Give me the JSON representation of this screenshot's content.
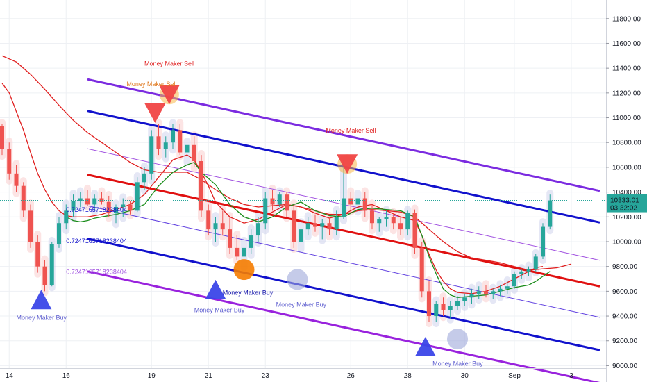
{
  "chart_data": {
    "type": "candlestick",
    "y_axis": {
      "range": [
        8980,
        11950
      ],
      "ticks": [
        "9000.00",
        "9200.00",
        "9400.00",
        "9600.00",
        "9800.00",
        "10000.00",
        "10200.00",
        "10400.00",
        "10600.00",
        "10800.00",
        "11000.00",
        "11200.00",
        "11400.00",
        "11600.00",
        "11800.00"
      ],
      "position": "right"
    },
    "x_axis": {
      "ticks": [
        {
          "label": "14",
          "index": 1
        },
        {
          "label": "16",
          "index": 9
        },
        {
          "label": "19",
          "index": 21
        },
        {
          "label": "21",
          "index": 29
        },
        {
          "label": "23",
          "index": 37
        },
        {
          "label": "26",
          "index": 49
        },
        {
          "label": "28",
          "index": 57
        },
        {
          "label": "30",
          "index": 65
        },
        {
          "label": "Sep",
          "index": 72
        },
        {
          "label": "3",
          "index": 80
        }
      ]
    },
    "grid": true,
    "price_badge": {
      "price": "10333.01",
      "countdown": "03:32:02",
      "value": 10333.01,
      "color": "#26a69a"
    },
    "bull_color": "#26a69a",
    "bear_color": "#ef5350",
    "candles": [
      [
        10930,
        10950,
        10700,
        10750
      ],
      [
        10750,
        10800,
        10500,
        10550
      ],
      [
        10550,
        10620,
        10400,
        10450
      ],
      [
        10450,
        10480,
        10200,
        10250
      ],
      [
        10250,
        10300,
        9950,
        10000
      ],
      [
        10000,
        10050,
        9750,
        9800
      ],
      [
        9800,
        9850,
        9600,
        9650
      ],
      [
        9650,
        10000,
        9640,
        9980
      ],
      [
        9980,
        10200,
        9950,
        10150
      ],
      [
        10150,
        10300,
        10100,
        10250
      ],
      [
        10250,
        10380,
        10200,
        10330
      ],
      [
        10330,
        10400,
        10280,
        10350
      ],
      [
        10350,
        10420,
        10290,
        10300
      ],
      [
        10300,
        10380,
        10250,
        10350
      ],
      [
        10350,
        10400,
        10300,
        10320
      ],
      [
        10320,
        10370,
        10200,
        10230
      ],
      [
        10230,
        10300,
        10150,
        10280
      ],
      [
        10280,
        10350,
        10200,
        10300
      ],
      [
        10300,
        10330,
        10220,
        10250
      ],
      [
        10250,
        10520,
        10240,
        10480
      ],
      [
        10480,
        10600,
        10420,
        10550
      ],
      [
        10550,
        10900,
        10500,
        10850
      ],
      [
        10850,
        10950,
        10700,
        10750
      ],
      [
        10750,
        10850,
        10680,
        10800
      ],
      [
        10800,
        10950,
        10750,
        10900
      ],
      [
        10900,
        10950,
        10700,
        10720
      ],
      [
        10720,
        10800,
        10650,
        10780
      ],
      [
        10780,
        10850,
        10600,
        10650
      ],
      [
        10650,
        10700,
        10200,
        10250
      ],
      [
        10250,
        10300,
        10050,
        10100
      ],
      [
        10100,
        10200,
        10000,
        10150
      ],
      [
        10150,
        10250,
        10050,
        10100
      ],
      [
        10100,
        10200,
        9900,
        9950
      ],
      [
        9950,
        10050,
        9850,
        9880
      ],
      [
        9880,
        10000,
        9800,
        9950
      ],
      [
        9950,
        10100,
        9900,
        10050
      ],
      [
        10050,
        10200,
        10000,
        10150
      ],
      [
        10150,
        10400,
        10100,
        10350
      ],
      [
        10350,
        10420,
        10250,
        10300
      ],
      [
        10300,
        10400,
        10280,
        10380
      ],
      [
        10380,
        10400,
        10200,
        10250
      ],
      [
        10250,
        10300,
        9950,
        10000
      ],
      [
        10000,
        10150,
        9950,
        10100
      ],
      [
        10100,
        10200,
        10050,
        10150
      ],
      [
        10150,
        10220,
        10080,
        10120
      ],
      [
        10120,
        10180,
        10020,
        10150
      ],
      [
        10150,
        10200,
        10050,
        10100
      ],
      [
        10100,
        10250,
        10050,
        10200
      ],
      [
        10200,
        10660,
        10180,
        10350
      ],
      [
        10350,
        10400,
        10250,
        10300
      ],
      [
        10300,
        10380,
        10250,
        10350
      ],
      [
        10350,
        10400,
        10200,
        10250
      ],
      [
        10250,
        10300,
        10100,
        10150
      ],
      [
        10150,
        10200,
        10080,
        10180
      ],
      [
        10180,
        10250,
        10120,
        10200
      ],
      [
        10200,
        10230,
        10100,
        10150
      ],
      [
        10150,
        10200,
        10050,
        10100
      ],
      [
        10100,
        10250,
        10050,
        10230
      ],
      [
        10230,
        10260,
        9900,
        9950
      ],
      [
        9950,
        10000,
        9550,
        9600
      ],
      [
        9600,
        9680,
        9350,
        9400
      ],
      [
        9400,
        9520,
        9350,
        9500
      ],
      [
        9500,
        9550,
        9400,
        9450
      ],
      [
        9450,
        9520,
        9380,
        9480
      ],
      [
        9480,
        9560,
        9450,
        9520
      ],
      [
        9520,
        9580,
        9480,
        9550
      ],
      [
        9550,
        9620,
        9500,
        9580
      ],
      [
        9580,
        9640,
        9540,
        9600
      ],
      [
        9600,
        9650,
        9550,
        9580
      ],
      [
        9580,
        9620,
        9540,
        9600
      ],
      [
        9600,
        9650,
        9560,
        9620
      ],
      [
        9620,
        9680,
        9580,
        9640
      ],
      [
        9640,
        9760,
        9620,
        9740
      ],
      [
        9740,
        9780,
        9700,
        9760
      ],
      [
        9760,
        9800,
        9720,
        9780
      ],
      [
        9780,
        9900,
        9760,
        9880
      ],
      [
        9880,
        10150,
        9860,
        10120
      ],
      [
        10120,
        10380,
        10100,
        10333.01
      ]
    ],
    "moving_averages": [
      {
        "color": "#e01e1e",
        "width": 1.3,
        "points": [
          [
            0,
            11500
          ],
          [
            2,
            11450
          ],
          [
            4,
            11350
          ],
          [
            6,
            11230
          ],
          [
            8,
            11100
          ],
          [
            10,
            10980
          ],
          [
            12,
            10880
          ],
          [
            14,
            10800
          ],
          [
            16,
            10720
          ],
          [
            18,
            10640
          ],
          [
            20,
            10580
          ],
          [
            22,
            10560
          ],
          [
            24,
            10560
          ],
          [
            26,
            10560
          ],
          [
            28,
            10500
          ],
          [
            30,
            10420
          ],
          [
            32,
            10350
          ],
          [
            34,
            10300
          ],
          [
            36,
            10280
          ],
          [
            38,
            10290
          ],
          [
            40,
            10300
          ],
          [
            42,
            10280
          ],
          [
            44,
            10250
          ],
          [
            46,
            10220
          ],
          [
            48,
            10220
          ],
          [
            50,
            10250
          ],
          [
            52,
            10260
          ],
          [
            54,
            10250
          ],
          [
            56,
            10240
          ],
          [
            58,
            10200
          ],
          [
            60,
            10100
          ],
          [
            62,
            10000
          ],
          [
            64,
            9920
          ],
          [
            66,
            9870
          ],
          [
            68,
            9850
          ],
          [
            70,
            9830
          ],
          [
            72,
            9800
          ],
          [
            74,
            9770
          ],
          [
            76,
            9780
          ],
          [
            78,
            9790
          ],
          [
            80,
            9820
          ]
        ]
      },
      {
        "color": "#e01e1e",
        "width": 1.3,
        "points": [
          [
            0,
            11280
          ],
          [
            1,
            11200
          ],
          [
            2,
            11050
          ],
          [
            3,
            10900
          ],
          [
            4,
            10720
          ],
          [
            5,
            10550
          ],
          [
            6,
            10420
          ],
          [
            7,
            10320
          ],
          [
            8,
            10250
          ],
          [
            9,
            10210
          ],
          [
            10,
            10200
          ],
          [
            12,
            10200
          ],
          [
            14,
            10220
          ],
          [
            16,
            10260
          ],
          [
            18,
            10300
          ],
          [
            20,
            10380
          ],
          [
            22,
            10520
          ],
          [
            24,
            10660
          ],
          [
            26,
            10700
          ],
          [
            27,
            10660
          ],
          [
            28,
            10560
          ],
          [
            29,
            10450
          ],
          [
            30,
            10320
          ],
          [
            32,
            10200
          ],
          [
            34,
            10150
          ],
          [
            36,
            10180
          ],
          [
            38,
            10240
          ],
          [
            40,
            10300
          ],
          [
            42,
            10280
          ],
          [
            44,
            10230
          ],
          [
            46,
            10190
          ],
          [
            48,
            10220
          ],
          [
            50,
            10280
          ],
          [
            52,
            10300
          ],
          [
            54,
            10250
          ],
          [
            56,
            10200
          ],
          [
            58,
            10170
          ],
          [
            59,
            10050
          ],
          [
            60,
            9900
          ],
          [
            61,
            9770
          ],
          [
            62,
            9680
          ],
          [
            63,
            9620
          ],
          [
            64,
            9590
          ],
          [
            66,
            9580
          ],
          [
            68,
            9600
          ],
          [
            70,
            9640
          ],
          [
            72,
            9700
          ],
          [
            74,
            9760
          ],
          [
            75,
            9790
          ],
          [
            76,
            9800
          ]
        ]
      },
      {
        "color": "#1a8c1a",
        "width": 1.3,
        "points": [
          [
            9,
            10200
          ],
          [
            10,
            10170
          ],
          [
            11,
            10160
          ],
          [
            12,
            10170
          ],
          [
            13,
            10190
          ],
          [
            14,
            10200
          ],
          [
            16,
            10220
          ],
          [
            18,
            10250
          ],
          [
            20,
            10300
          ],
          [
            22,
            10450
          ],
          [
            24,
            10560
          ],
          [
            26,
            10620
          ],
          [
            27,
            10640
          ],
          [
            28,
            10560
          ],
          [
            30,
            10460
          ],
          [
            32,
            10300
          ],
          [
            34,
            10200
          ],
          [
            36,
            10160
          ],
          [
            38,
            10200
          ],
          [
            40,
            10280
          ],
          [
            42,
            10320
          ],
          [
            44,
            10250
          ],
          [
            46,
            10210
          ],
          [
            48,
            10200
          ],
          [
            50,
            10260
          ],
          [
            52,
            10270
          ],
          [
            54,
            10260
          ],
          [
            56,
            10250
          ],
          [
            58,
            10200
          ],
          [
            59,
            10050
          ],
          [
            60,
            9880
          ],
          [
            61,
            9740
          ],
          [
            62,
            9620
          ],
          [
            63,
            9570
          ],
          [
            64,
            9550
          ],
          [
            66,
            9560
          ],
          [
            68,
            9570
          ],
          [
            70,
            9600
          ],
          [
            72,
            9630
          ],
          [
            74,
            9650
          ],
          [
            75,
            9680
          ],
          [
            76,
            9720
          ],
          [
            77,
            9760
          ]
        ]
      }
    ],
    "regression_channel": {
      "x0": 12,
      "x1": 84,
      "slope_per_bar": -12.5,
      "lines": [
        {
          "name": "outer_top",
          "y0": 11310,
          "color": "#7b2be0",
          "width": 3
        },
        {
          "name": "inner_top",
          "y0": 11055,
          "color": "#1111cc",
          "width": 3
        },
        {
          "name": "fib_top",
          "y0": 10750,
          "color": "#a050e0",
          "width": 1
        },
        {
          "name": "center",
          "y0": 10540,
          "color": "#e01010",
          "width": 3
        },
        {
          "name": "fib_bottom",
          "y0": 10290,
          "color": "#6040e0",
          "width": 1
        },
        {
          "name": "inner_bottom",
          "y0": 10025,
          "color": "#1111cc",
          "width": 3
        },
        {
          "name": "outer_bottom",
          "y0": 9760,
          "color": "#9922dd",
          "width": 3
        }
      ]
    },
    "fib_labels": [
      {
        "text": "0.7247165718238404",
        "x": 9,
        "y": 10240,
        "color": "#1111cc"
      },
      {
        "text": "0.7247165718238404",
        "x": 9,
        "y": 9990,
        "color": "#1111cc"
      },
      {
        "text": "0.7247165718238404",
        "x": 9,
        "y": 9740,
        "color": "#a050e0"
      }
    ],
    "signals": [
      {
        "type": "sell",
        "x": 21.5,
        "y": 11070,
        "color": "#f04545"
      },
      {
        "type": "sell",
        "x": 23.5,
        "y": 11220,
        "color": "#f04545",
        "halo": "#f7b84a"
      },
      {
        "type": "sell",
        "x": 48.5,
        "y": 10660,
        "color": "#f04545",
        "halo": "#f7b84a"
      },
      {
        "type": "buy",
        "x": 5.5,
        "y": 9500,
        "color": "#3b46e8"
      },
      {
        "type": "buy",
        "x": 30,
        "y": 9580,
        "color": "#3b46e8"
      },
      {
        "type": "buy",
        "x": 59.5,
        "y": 9120,
        "color": "#3b46e8"
      }
    ],
    "circles": [
      {
        "x": 34,
        "y": 9775,
        "color": "#f57c00",
        "opacity": 0.9
      },
      {
        "x": 41.5,
        "y": 9695,
        "color": "#9fa8da",
        "opacity": 0.6
      },
      {
        "x": 64,
        "y": 9215,
        "color": "#9fa8da",
        "opacity": 0.6
      }
    ],
    "annotations": [
      {
        "text": "Money Maker Sell",
        "x": 20,
        "y": 11420,
        "color": "#e02020"
      },
      {
        "text": "Money Maker Sell",
        "x": 17.5,
        "y": 11255,
        "color": "#e07a20"
      },
      {
        "text": "Money Maker Sell",
        "x": 45.5,
        "y": 10880,
        "color": "#e02020"
      },
      {
        "text": "Money Maker Buy",
        "x": 2,
        "y": 9370,
        "color": "#6060d0"
      },
      {
        "text": "Money Maker Buy",
        "x": 31,
        "y": 9570,
        "color": "#1111aa"
      },
      {
        "text": "Money Maker Buy",
        "x": 27,
        "y": 9430,
        "color": "#6060d0"
      },
      {
        "text": "Money Maker Buy",
        "x": 38.5,
        "y": 9475,
        "color": "#6060d0"
      },
      {
        "text": "Money Maker Buy",
        "x": 60.5,
        "y": 9000,
        "color": "#6060d0"
      }
    ]
  }
}
